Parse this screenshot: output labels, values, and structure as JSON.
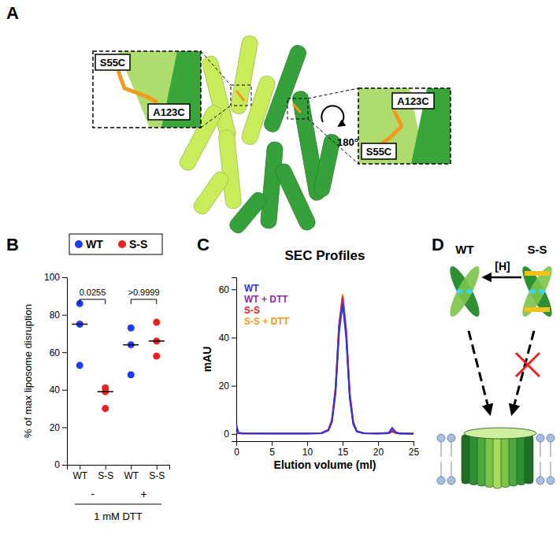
{
  "panels": [
    "A",
    "B",
    "C",
    "D"
  ],
  "structure": {
    "left_inset": [
      "S55C",
      "A123C"
    ],
    "right_inset": [
      "A123C",
      "S55C"
    ],
    "rotation": "180°"
  },
  "diagram": {
    "wt": "WT",
    "ss": "S-S",
    "reductant": "[H]"
  },
  "chart_data": [
    {
      "type": "scatter",
      "categories": [
        "WT",
        "S-S",
        "WT",
        "S-S"
      ],
      "group_labels": [
        "-",
        "+"
      ],
      "group_title": "1 mM DTT",
      "ylabel": "% of max liposome disruption",
      "ylim": [
        0,
        100
      ],
      "yticks": [
        0,
        20,
        40,
        60,
        80,
        100
      ],
      "legend": "top",
      "annotations": [
        "0.0255",
        ">0.9999"
      ],
      "series": [
        {
          "name": "WT",
          "color": "#1f3cf0",
          "values": [
            [
              86,
              75,
              53
            ],
            null,
            [
              73,
              64,
              48
            ],
            null
          ],
          "medians": [
            75,
            null,
            64,
            null
          ]
        },
        {
          "name": "S-S",
          "color": "#e8231f",
          "values": [
            null,
            [
              41,
              39,
              30
            ],
            null,
            [
              76,
              66,
              58
            ]
          ],
          "medians": [
            null,
            39,
            null,
            66
          ]
        }
      ]
    },
    {
      "type": "line",
      "title": "SEC Profiles",
      "xlabel": "Elution volume (ml)",
      "ylabel": "mAU",
      "xlim": [
        0,
        25
      ],
      "xticks": [
        0,
        5,
        10,
        15,
        20,
        25
      ],
      "ylim": [
        -3,
        65
      ],
      "yticks": [
        0,
        20,
        40,
        60
      ],
      "legend": "top left",
      "x": [
        0,
        0.3,
        1,
        5,
        10,
        12,
        13,
        13.5,
        14,
        14.5,
        15,
        15.5,
        16,
        16.5,
        17,
        18,
        20,
        21.5,
        22,
        22.5,
        23,
        25
      ],
      "series": [
        {
          "name": "WT",
          "color": "#2a36e6",
          "values": [
            4,
            0.5,
            0.3,
            0.2,
            0.2,
            0.3,
            1.5,
            5,
            17,
            42,
            54,
            40,
            15,
            4,
            1,
            0.3,
            0.2,
            0.5,
            2.5,
            0.8,
            0.2,
            0.1
          ]
        },
        {
          "name": "WT + DTT",
          "color": "#8e2fa8",
          "values": [
            0.5,
            0.3,
            0.2,
            0.2,
            0.2,
            0.3,
            1.5,
            5.5,
            18,
            44,
            56,
            42,
            16,
            4.5,
            1,
            0.3,
            0.2,
            0.3,
            1.5,
            0.5,
            0.2,
            0.1
          ]
        },
        {
          "name": "S-S",
          "color": "#e0202a",
          "values": [
            0.5,
            0.3,
            0.2,
            0.2,
            0.2,
            0.3,
            1.8,
            6,
            19,
            45,
            57,
            43,
            17,
            5,
            1.2,
            0.3,
            0.2,
            0.3,
            1,
            0.4,
            0.2,
            0.1
          ]
        },
        {
          "name": "S-S + DTT",
          "color": "#f59a1e",
          "values": [
            0.5,
            0.3,
            0.2,
            0.2,
            0.2,
            0.3,
            1.8,
            6,
            19,
            46,
            58,
            44,
            17,
            5,
            1.2,
            0.3,
            0.2,
            0.3,
            1,
            0.4,
            0.2,
            0.1
          ]
        }
      ]
    }
  ]
}
